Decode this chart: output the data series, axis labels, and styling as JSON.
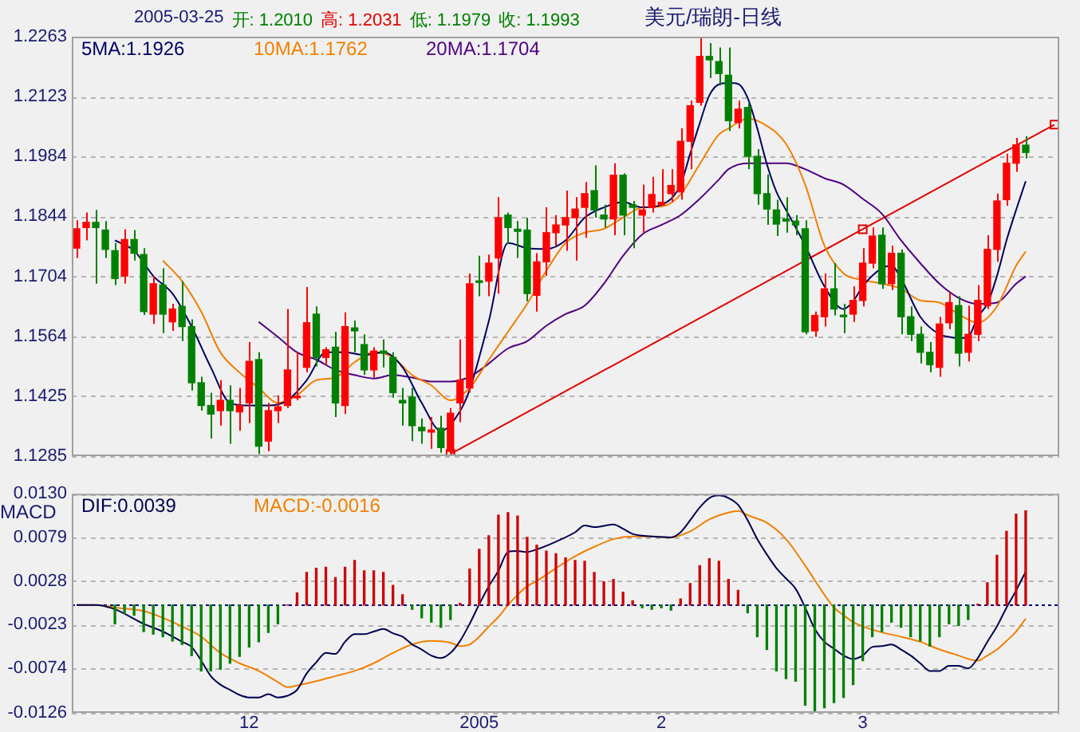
{
  "chart_data": [
    {
      "type": "candlestick",
      "title": "美元/瑞朗-日线",
      "annotations": [
        "2005-03-25",
        "开: 1.2010",
        "高: 1.2031",
        "低: 1.1979",
        "收: 1.1993"
      ],
      "categories": [
        null,
        null,
        null,
        null,
        null,
        null,
        null,
        null,
        null,
        null,
        null,
        null,
        null,
        null,
        null,
        null,
        null,
        null,
        "12",
        null,
        null,
        null,
        null,
        null,
        null,
        null,
        null,
        null,
        null,
        null,
        null,
        null,
        null,
        null,
        null,
        null,
        null,
        null,
        null,
        null,
        null,
        null,
        "2005",
        null,
        null,
        null,
        null,
        null,
        null,
        null,
        null,
        null,
        null,
        null,
        null,
        null,
        null,
        null,
        null,
        null,
        null,
        "2",
        null,
        null,
        null,
        null,
        null,
        null,
        null,
        null,
        null,
        null,
        null,
        null,
        null,
        null,
        null,
        null,
        null,
        null,
        null,
        null,
        "3",
        null,
        null,
        null,
        null,
        null,
        null,
        null,
        null,
        null,
        null,
        null,
        null,
        null,
        null,
        null,
        null,
        null,
        null,
        null,
        null
      ],
      "ohlc": [
        [
          1.177,
          1.1835,
          1.1747,
          1.1815
        ],
        [
          1.1818,
          1.1853,
          1.1788,
          1.183
        ],
        [
          1.183,
          1.1859,
          1.1687,
          1.1818
        ],
        [
          1.1812,
          1.1833,
          1.1747,
          1.1767
        ],
        [
          1.1764,
          1.1782,
          1.1684,
          1.1699
        ],
        [
          1.1705,
          1.1814,
          1.1687,
          1.179
        ],
        [
          1.179,
          1.1812,
          1.1741,
          1.1758
        ],
        [
          1.1755,
          1.177,
          1.1614,
          1.1622
        ],
        [
          1.1616,
          1.1705,
          1.1593,
          1.1687
        ],
        [
          1.1684,
          1.1723,
          1.1572,
          1.1616
        ],
        [
          1.1598,
          1.164,
          1.1577,
          1.1628
        ],
        [
          1.1634,
          1.1693,
          1.1553,
          1.1587
        ],
        [
          1.1587,
          1.1604,
          1.1438,
          1.1456
        ],
        [
          1.1456,
          1.147,
          1.1391,
          1.1403
        ],
        [
          1.1403,
          1.1433,
          1.1326,
          1.1383
        ],
        [
          1.1391,
          1.1462,
          1.1356,
          1.1415
        ],
        [
          1.1415,
          1.145,
          1.1314,
          1.1391
        ],
        [
          1.1388,
          1.1444,
          1.1344,
          1.1403
        ],
        [
          1.1409,
          1.1551,
          1.1362,
          1.1506
        ],
        [
          1.151,
          1.1527,
          1.129,
          1.1308
        ],
        [
          1.132,
          1.1409,
          1.1296,
          1.1391
        ],
        [
          1.1391,
          1.1427,
          1.1362,
          1.14
        ],
        [
          1.1403,
          1.1628,
          1.1397,
          1.1486
        ],
        [
          1.1421,
          1.1527,
          1.1415,
          1.1423
        ],
        [
          1.1492,
          1.1679,
          1.148,
          1.1596
        ],
        [
          1.1616,
          1.1634,
          1.1494,
          1.1515
        ],
        [
          1.1515,
          1.1539,
          1.1498,
          1.1533
        ],
        [
          1.1539,
          1.1575,
          1.1376,
          1.1409
        ],
        [
          1.1403,
          1.162,
          1.1383,
          1.1587
        ],
        [
          1.1584,
          1.1601,
          1.1527,
          1.1577
        ],
        [
          1.1545,
          1.1569,
          1.1474,
          1.1486
        ],
        [
          1.1486,
          1.1539,
          1.1468,
          1.153
        ],
        [
          1.153,
          1.1557,
          1.1492,
          1.1525
        ],
        [
          1.1515,
          1.1527,
          1.1421,
          1.1433
        ],
        [
          1.1415,
          1.1444,
          1.1356,
          1.1409
        ],
        [
          1.1423,
          1.1444,
          1.132,
          1.1356
        ],
        [
          1.1352,
          1.1373,
          1.1314,
          1.1344
        ],
        [
          1.1341,
          1.1376,
          1.1302,
          1.1346
        ],
        [
          1.135,
          1.1379,
          1.1293,
          1.1305
        ],
        [
          1.1296,
          1.1397,
          1.129,
          1.1385
        ],
        [
          1.1409,
          1.1557,
          1.1364,
          1.1462
        ],
        [
          1.1444,
          1.1711,
          1.1433,
          1.1687
        ],
        [
          1.1693,
          1.1752,
          1.1658,
          1.169
        ],
        [
          1.1693,
          1.1755,
          1.1658,
          1.1735
        ],
        [
          1.1747,
          1.1889,
          1.1664,
          1.1841
        ],
        [
          1.1847,
          1.1853,
          1.1779,
          1.1818
        ],
        [
          1.1814,
          1.1833,
          1.1747,
          1.1809
        ],
        [
          1.1812,
          1.1841,
          1.1646,
          1.1664
        ],
        [
          1.166,
          1.1758,
          1.1622,
          1.1738
        ],
        [
          1.1738,
          1.1865,
          1.1705,
          1.1806
        ],
        [
          1.1806,
          1.1847,
          1.1776,
          1.1824
        ],
        [
          1.1824,
          1.1904,
          1.1764,
          1.1841
        ],
        [
          1.1841,
          1.1889,
          1.1741,
          1.1861
        ],
        [
          1.1865,
          1.1924,
          1.1794,
          1.1897
        ],
        [
          1.1904,
          1.1963,
          1.1841,
          1.1859
        ],
        [
          1.1847,
          1.1871,
          1.1818,
          1.1838
        ],
        [
          1.1838,
          1.1968,
          1.18,
          1.194
        ],
        [
          1.194,
          1.1944,
          1.18,
          1.1847
        ],
        [
          1.1871,
          1.188,
          1.177,
          1.1865
        ],
        [
          1.1847,
          1.1918,
          1.1806,
          1.1859
        ],
        [
          1.1865,
          1.1936,
          1.1853,
          1.1895
        ],
        [
          1.1871,
          1.1954,
          1.1869,
          1.1877
        ],
        [
          1.1897,
          1.1954,
          1.1877,
          1.1916
        ],
        [
          1.1901,
          1.2049,
          1.1883,
          1.2019
        ],
        [
          1.2019,
          1.2114,
          1.1954,
          1.2102
        ],
        [
          1.211,
          1.2263,
          1.2102,
          1.2217
        ],
        [
          1.2217,
          1.2248,
          1.2167,
          1.2209
        ],
        [
          1.2205,
          1.2238,
          1.2149,
          1.2177
        ],
        [
          1.2173,
          1.2238,
          1.2043,
          1.2067
        ],
        [
          1.2063,
          1.2114,
          1.2049,
          1.2094
        ],
        [
          1.2098,
          1.2108,
          1.1954,
          1.1984
        ],
        [
          1.1984,
          1.2001,
          1.1871,
          1.1897
        ],
        [
          1.1897,
          1.1942,
          1.1824,
          1.1861
        ],
        [
          1.1859,
          1.1883,
          1.1798,
          1.1826
        ],
        [
          1.1838,
          1.1889,
          1.1806,
          1.1833
        ],
        [
          1.1833,
          1.1847,
          1.18,
          1.1824
        ],
        [
          1.1815,
          1.1835,
          1.1569,
          1.1575
        ],
        [
          1.1577,
          1.1622,
          1.1563,
          1.1613
        ],
        [
          1.161,
          1.1711,
          1.1587,
          1.1675
        ],
        [
          1.1675,
          1.1735,
          1.1613,
          1.1628
        ],
        [
          1.1613,
          1.164,
          1.1572,
          1.161
        ],
        [
          1.1616,
          1.1681,
          1.1598,
          1.1648
        ],
        [
          1.1648,
          1.177,
          1.1634,
          1.1735
        ],
        [
          1.1735,
          1.1818,
          1.1723,
          1.1798
        ],
        [
          1.18,
          1.1818,
          1.1675,
          1.1687
        ],
        [
          1.1687,
          1.1776,
          1.1672,
          1.1758
        ],
        [
          1.1758,
          1.1767,
          1.1569,
          1.161
        ],
        [
          1.161,
          1.1634,
          1.1553,
          1.1569
        ],
        [
          1.1569,
          1.1587,
          1.1501,
          1.1527
        ],
        [
          1.1527,
          1.1551,
          1.148,
          1.1498
        ],
        [
          1.1492,
          1.161,
          1.147,
          1.1593
        ],
        [
          1.1596,
          1.1667,
          1.1581,
          1.1643
        ],
        [
          1.1636,
          1.1658,
          1.1494,
          1.1525
        ],
        [
          1.1527,
          1.1636,
          1.1506,
          1.1569
        ],
        [
          1.1569,
          1.1684,
          1.1553,
          1.1648
        ],
        [
          1.1636,
          1.18,
          1.1628,
          1.1767
        ],
        [
          1.1767,
          1.1897,
          1.1738,
          1.188
        ],
        [
          1.1883,
          1.199,
          1.1869,
          1.1968
        ],
        [
          1.1968,
          1.2027,
          1.1948,
          1.2011
        ],
        [
          1.201,
          1.2031,
          1.1979,
          1.1993
        ],
        null,
        null,
        null
      ],
      "colors": [
        "#ff0000",
        "#ff0000",
        "#008000",
        "#008000",
        "#008000",
        "#ff0000",
        "#008000",
        "#008000",
        "#ff0000",
        "#008000",
        "#ff0000",
        "#008000",
        "#008000",
        "#008000",
        "#008000",
        "#ff0000",
        "#008000",
        "#ff0000",
        "#ff0000",
        "#008000",
        "#ff0000",
        "#ff0000",
        "#ff0000",
        "#ff0000",
        "#ff0000",
        "#008000",
        "#ff0000",
        "#008000",
        "#ff0000",
        "#008000",
        "#008000",
        "#ff0000",
        "#008000",
        "#008000",
        "#008000",
        "#008000",
        "#008000",
        "#ff0000",
        "#008000",
        "#ff0000",
        "#ff0000",
        "#ff0000",
        "#008000",
        "#ff0000",
        "#ff0000",
        "#008000",
        "#008000",
        "#008000",
        "#ff0000",
        "#ff0000",
        "#ff0000",
        "#ff0000",
        "#ff0000",
        "#ff0000",
        "#008000",
        "#008000",
        "#ff0000",
        "#008000",
        "#008000",
        "#ff0000",
        "#ff0000",
        "#ff0000",
        "#ff0000",
        "#ff0000",
        "#ff0000",
        "#ff0000",
        "#008000",
        "#008000",
        "#008000",
        "#ff0000",
        "#008000",
        "#008000",
        "#008000",
        "#008000",
        "#008000",
        "#008000",
        "#008000",
        "#ff0000",
        "#ff0000",
        "#008000",
        "#008000",
        "#ff0000",
        "#ff0000",
        "#ff0000",
        "#008000",
        "#ff0000",
        "#008000",
        "#008000",
        "#008000",
        "#008000",
        "#ff0000",
        "#ff0000",
        "#008000",
        "#ff0000",
        "#ff0000",
        "#ff0000",
        "#ff0000",
        "#ff0000",
        "#ff0000",
        "#008000",
        null,
        null,
        null
      ],
      "series": [
        {
          "type": "line",
          "name": "5MA:1.1926",
          "color": "#000060",
          "values": [
            null,
            null,
            null,
            null,
            1.1788,
            null,
            1.1764,
            null,
            1.1705,
            null,
            1.1664,
            null,
            1.1587,
            null,
            1.1492,
            null,
            1.1409,
            null,
            1.1403,
            null,
            1.1403,
            null,
            1.1415,
            null,
            1.1462,
            null,
            1.1527,
            null,
            1.1527,
            null,
            1.1521,
            null,
            1.1527,
            null,
            1.1492,
            null,
            1.1409,
            null,
            1.1344,
            null,
            1.139,
            1.144,
            null,
            1.16,
            null,
            1.1782,
            null,
            1.177,
            null,
            1.1768,
            null,
            1.1788,
            null,
            1.1841,
            null,
            1.1865,
            null,
            1.1877,
            null,
            1.1865,
            null,
            1.1871,
            null,
            1.1918,
            1.199,
            1.2061,
            1.2126,
            1.2152,
            1.2155,
            1.2153,
            1.212,
            1.2049,
            1.1966,
            1.1901,
            1.1859,
            null,
            1.1776,
            null,
            1.1681,
            null,
            1.1628,
            1.1646,
            1.1681,
            null,
            1.1723,
            1.1729,
            1.1699,
            null,
            1.161,
            null,
            1.1569,
            1.1563,
            1.156,
            1.1563,
            1.161,
            1.164,
            1.1705,
            1.1788,
            1.1859,
            1.1926,
            null,
            null,
            null
          ]
        },
        {
          "type": "line",
          "name": "10MA:1.1762",
          "color": "#f08000",
          "values": [
            null,
            null,
            null,
            null,
            null,
            null,
            null,
            null,
            null,
            1.1741,
            null,
            1.1693,
            null,
            1.1622,
            null,
            1.1527,
            null,
            1.148,
            null,
            1.1444,
            null,
            1.1409,
            null,
            1.1427,
            null,
            1.1462,
            null,
            1.1468,
            null,
            1.1504,
            null,
            1.1527,
            null,
            1.1515,
            null,
            1.1474,
            null,
            1.145,
            null,
            1.1415,
            null,
            1.1444,
            null,
            1.151,
            null,
            1.1575,
            null,
            1.164,
            null,
            1.1717,
            null,
            1.1782,
            null,
            1.1806,
            null,
            1.1815,
            null,
            1.1841,
            null,
            1.1865,
            null,
            1.1867,
            null,
            1.1895,
            null,
            1.1966,
            null,
            1.2035,
            1.2049,
            null,
            1.2072,
            null,
            1.2055,
            null,
            1.2013,
            null,
            1.1918,
            null,
            1.1776,
            null,
            1.1711,
            null,
            1.1696,
            null,
            1.1687,
            null,
            1.1675,
            null,
            1.1648,
            null,
            1.1643,
            null,
            1.1616,
            null,
            1.1596,
            null,
            1.1634,
            null,
            1.1729,
            1.1762,
            null,
            null,
            null
          ]
        },
        {
          "type": "line",
          "name": "20MA:1.1704",
          "color": "#500080",
          "values": [
            null,
            null,
            null,
            null,
            null,
            null,
            null,
            null,
            null,
            null,
            null,
            null,
            null,
            null,
            null,
            null,
            null,
            null,
            null,
            1.1598,
            null,
            1.1563,
            null,
            1.1527,
            null,
            1.151,
            null,
            1.1486,
            null,
            1.1474,
            null,
            1.1466,
            null,
            1.1474,
            null,
            1.1468,
            null,
            1.1459,
            null,
            1.1459,
            null,
            1.147,
            null,
            1.1501,
            null,
            1.1536,
            null,
            1.1553,
            null,
            1.1589,
            null,
            1.1616,
            null,
            1.1636,
            null,
            1.1687,
            null,
            1.1752,
            null,
            1.1802,
            null,
            1.1824,
            null,
            1.1847,
            null,
            1.1885,
            null,
            1.193,
            1.1954,
            null,
            1.1968,
            null,
            1.1968,
            null,
            1.1968,
            null,
            1.1954,
            null,
            1.1933,
            null,
            1.1918,
            null,
            1.1885,
            null,
            1.185,
            null,
            1.1788,
            null,
            1.1735,
            null,
            1.1687,
            null,
            1.1654,
            null,
            1.164,
            null,
            1.1643,
            null,
            1.1687,
            1.1704,
            null,
            null,
            null
          ]
        },
        {
          "type": "line",
          "color": "#e00000",
          "marker": "square",
          "values": [
            null,
            null,
            null,
            null,
            null,
            null,
            null,
            null,
            null,
            null,
            null,
            null,
            null,
            null,
            null,
            null,
            null,
            null,
            null,
            null,
            null,
            null,
            null,
            null,
            null,
            null,
            null,
            null,
            null,
            null,
            null,
            null,
            null,
            null,
            null,
            null,
            null,
            null,
            null,
            1.129,
            null,
            null,
            null,
            null,
            null,
            null,
            null,
            null,
            null,
            null,
            null,
            null,
            null,
            null,
            null,
            null,
            null,
            null,
            null,
            null,
            null,
            null,
            null,
            null,
            null,
            null,
            null,
            null,
            null,
            null,
            null,
            null,
            null,
            null,
            null,
            null,
            null,
            null,
            null,
            null,
            null,
            null,
            1.1814,
            null,
            null,
            null,
            null,
            null,
            null,
            null,
            null,
            null,
            null,
            null,
            null,
            null,
            null,
            null,
            null,
            null,
            null,
            null,
            1.2058
          ]
        }
      ],
      "ylim": [
        1.1285,
        1.2263
      ],
      "yticks": [
        1.1285,
        1.1425,
        1.1564,
        1.1704,
        1.1844,
        1.1984,
        1.2123,
        1.2263
      ],
      "grid": "y",
      "legend": "top left",
      "tick_labels": "y"
    },
    {
      "type": "bar",
      "ylabel": "MACD",
      "categories": [
        null,
        null,
        null,
        null,
        null,
        null,
        null,
        null,
        null,
        null,
        null,
        null,
        null,
        null,
        null,
        null,
        null,
        null,
        "12",
        null,
        null,
        null,
        null,
        null,
        null,
        null,
        null,
        null,
        null,
        null,
        null,
        null,
        null,
        null,
        null,
        null,
        null,
        null,
        null,
        null,
        null,
        null,
        "2005",
        null,
        null,
        null,
        null,
        null,
        null,
        null,
        null,
        null,
        null,
        null,
        null,
        null,
        null,
        null,
        null,
        null,
        null,
        "2",
        null,
        null,
        null,
        null,
        null,
        null,
        null,
        null,
        null,
        null,
        null,
        null,
        null,
        null,
        null,
        null,
        null,
        null,
        null,
        null,
        "3",
        null,
        null,
        null,
        null,
        null,
        null,
        null,
        null,
        null,
        null,
        null,
        null,
        null,
        null,
        null,
        null,
        null,
        null,
        null,
        null
      ],
      "series": [
        {
          "type": "bar",
          "values": [
            null,
            null,
            null,
            null,
            -0.0022,
            -0.001,
            -0.0012,
            -0.0031,
            -0.0034,
            -0.0037,
            -0.0042,
            -0.0046,
            -0.0059,
            -0.0077,
            -0.0077,
            -0.0075,
            -0.0068,
            -0.006,
            -0.0049,
            -0.0043,
            -0.0032,
            -0.0022,
            0,
            0.0014,
            0.0038,
            0.0043,
            0.0044,
            0.0032,
            0.0044,
            0.0052,
            0.004,
            0.004,
            0.0038,
            0.0023,
            0.0012,
            -0.0005,
            -0.0015,
            -0.002,
            -0.0026,
            -0.0017,
            0.0002,
            0.0042,
            0.0065,
            0.0081,
            0.0105,
            0.0108,
            0.0104,
            0.0079,
            0.007,
            0.0063,
            0.006,
            0.0055,
            0.0052,
            0.0051,
            0.0038,
            0.0027,
            0.003,
            0.0015,
            0.0005,
            -0.0003,
            -0.0005,
            -0.0003,
            -0.0006,
            0.0007,
            0.0025,
            0.0046,
            0.0054,
            0.0051,
            0.003,
            0.0017,
            -0.0009,
            -0.0037,
            -0.0052,
            -0.0077,
            -0.0086,
            -0.0089,
            -0.0117,
            -0.0126,
            -0.012,
            -0.0114,
            -0.0108,
            -0.0093,
            -0.0065,
            -0.0037,
            -0.0031,
            -0.002,
            -0.0026,
            -0.0037,
            -0.0042,
            -0.0048,
            -0.0037,
            -0.0022,
            -0.0024,
            -0.0017,
            0.0001,
            0.0026,
            0.0058,
            0.0086,
            0.0106,
            0.011,
            null,
            null,
            null
          ],
          "colors": [
            null,
            null,
            null,
            null,
            "#008000",
            "#008000",
            "#008000",
            "#008000",
            "#008000",
            "#008000",
            "#008000",
            "#008000",
            "#008000",
            "#008000",
            "#008000",
            "#008000",
            "#008000",
            "#008000",
            "#008000",
            "#008000",
            "#008000",
            "#008000",
            "#cc0000",
            "#cc0000",
            "#cc0000",
            "#cc0000",
            "#cc0000",
            "#cc0000",
            "#cc0000",
            "#cc0000",
            "#cc0000",
            "#cc0000",
            "#cc0000",
            "#cc0000",
            "#cc0000",
            "#008000",
            "#008000",
            "#008000",
            "#008000",
            "#008000",
            "#cc0000",
            "#cc0000",
            "#cc0000",
            "#cc0000",
            "#cc0000",
            "#cc0000",
            "#cc0000",
            "#cc0000",
            "#cc0000",
            "#cc0000",
            "#cc0000",
            "#cc0000",
            "#cc0000",
            "#cc0000",
            "#cc0000",
            "#cc0000",
            "#cc0000",
            "#cc0000",
            "#cc0000",
            "#008000",
            "#008000",
            "#008000",
            "#008000",
            "#cc0000",
            "#cc0000",
            "#cc0000",
            "#cc0000",
            "#cc0000",
            "#cc0000",
            "#cc0000",
            "#008000",
            "#008000",
            "#008000",
            "#008000",
            "#008000",
            "#008000",
            "#008000",
            "#008000",
            "#008000",
            "#008000",
            "#008000",
            "#008000",
            "#008000",
            "#008000",
            "#008000",
            "#008000",
            "#008000",
            "#008000",
            "#008000",
            "#008000",
            "#008000",
            "#008000",
            "#008000",
            "#008000",
            "#cc0000",
            "#cc0000",
            "#cc0000",
            "#cc0000",
            "#cc0000",
            "#cc0000",
            null,
            null,
            null
          ]
        },
        {
          "type": "line",
          "name": "DIF:0.0039",
          "color": "#000050",
          "values": [
            0,
            0,
            0,
            null,
            -0.0005,
            null,
            null,
            -0.0022,
            null,
            -0.0031,
            null,
            -0.0043,
            -0.0049,
            -0.0065,
            -0.0083,
            -0.0093,
            -0.0099,
            -0.0105,
            -0.0108,
            -0.0108,
            -0.0104,
            -0.0108,
            -0.0106,
            -0.0099,
            -0.008,
            -0.0067,
            -0.0056,
            -0.0057,
            -0.0043,
            -0.0034,
            -0.0034,
            -0.0031,
            -0.0028,
            -0.0033,
            -0.0037,
            -0.0046,
            -0.0052,
            -0.0059,
            -0.0062,
            -0.0056,
            -0.0042,
            -0.0022,
            0.0001,
            0.0022,
            0.004,
            0.0062,
            0.0063,
            0.0062,
            0.0065,
            null,
            0.0074,
            null,
            0.0085,
            0.0093,
            0.0091,
            null,
            0.0094,
            0.0089,
            0.0083,
            0.0081,
            0.008,
            null,
            0.0079,
            0.0085,
            0.0099,
            0.0114,
            0.0125,
            0.0128,
            0.0125,
            0.0117,
            0.0099,
            0.0077,
            0.0059,
            0.0043,
            0.0031,
            0.0019,
            -0.0003,
            -0.0028,
            -0.0043,
            -0.0051,
            -0.0059,
            -0.0063,
            -0.0059,
            -0.0049,
            -0.0048,
            -0.0046,
            -0.0052,
            -0.0059,
            -0.0068,
            -0.0077,
            -0.0077,
            -0.0071,
            -0.0071,
            -0.0074,
            -0.0062,
            -0.0043,
            -0.0025,
            -0.0003,
            0.0017,
            0.0039,
            null,
            null,
            null
          ]
        },
        {
          "type": "line",
          "name": "MACD:-0.0016",
          "color": "#f08000",
          "values": [
            0,
            0,
            0,
            null,
            -0.0003,
            null,
            null,
            -0.0007,
            null,
            -0.0015,
            null,
            -0.0025,
            null,
            -0.0037,
            null,
            -0.0056,
            null,
            -0.0068,
            null,
            -0.0077,
            null,
            -0.009,
            -0.0096,
            -0.0094,
            null,
            -0.0089,
            null,
            -0.0083,
            null,
            -0.0077,
            null,
            -0.0068,
            null,
            -0.0056,
            null,
            -0.0046,
            null,
            -0.0042,
            null,
            -0.0044,
            -0.0048,
            -0.0046,
            -0.0037,
            -0.0025,
            -0.0014,
            0,
            0.0012,
            0.0022,
            0.0028,
            null,
            0.0043,
            null,
            0.0057,
            null,
            0.0068,
            null,
            0.0077,
            null,
            0.008,
            null,
            0.008,
            null,
            0.0079,
            null,
            0.0086,
            null,
            0.01,
            null,
            0.0108,
            0.011,
            0.0105,
            null,
            0.0096,
            null,
            0.0077,
            null,
            0.0046,
            null,
            0.0012,
            -0.0003,
            -0.0012,
            -0.002,
            -0.0025,
            null,
            -0.0032,
            null,
            -0.0037,
            null,
            -0.0043,
            null,
            -0.0052,
            null,
            -0.0059,
            -0.0063,
            -0.0065,
            -0.0059,
            -0.0052,
            -0.0042,
            -0.0031,
            -0.0016,
            null,
            null,
            null
          ]
        }
      ],
      "ylim": [
        -0.0126,
        0.013
      ],
      "yticks": [
        -0.0126,
        -0.0074,
        -0.0023,
        0.0028,
        0.0079,
        {
          "value": 0.013,
          "label": "0.0130"
        }
      ],
      "ref_lines": [
        {
          "axis": "y",
          "value": 0,
          "color": "#000080",
          "line_style": "dotted"
        }
      ],
      "grid": "y",
      "legend": "top left"
    }
  ]
}
